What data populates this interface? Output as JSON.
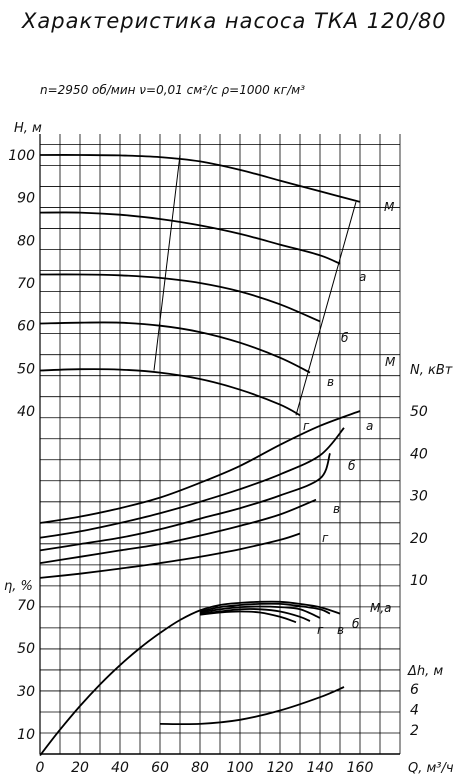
{
  "title": "Характеристика насоса ТКА 120/80",
  "params": "n=2950 об/мин   ν=0,01 см²/с   ρ=1000 кг/м³",
  "chart_data": {
    "type": "line",
    "x_label": "Q, м³/ч",
    "x_ticks": [
      0,
      20,
      40,
      60,
      80,
      100,
      120,
      140,
      160
    ],
    "xlim": [
      0,
      180
    ],
    "grid": true,
    "axes": {
      "H": {
        "label": "H, м",
        "ticks": [
          40,
          50,
          60,
          70,
          80,
          90,
          100
        ],
        "range": [
          40,
          100
        ]
      },
      "N": {
        "label": "N, кВт",
        "ticks": [
          10,
          20,
          30,
          40,
          50
        ],
        "range": [
          10,
          50
        ]
      },
      "eta": {
        "label": "η, %",
        "ticks": [
          10,
          30,
          50,
          70
        ],
        "range": [
          0,
          70
        ]
      },
      "dh": {
        "label": "Δh, м",
        "ticks": [
          2,
          4,
          6
        ],
        "range": [
          2,
          6
        ]
      }
    },
    "series": [
      {
        "axis": "H",
        "name": "М",
        "x": [
          0,
          20,
          40,
          60,
          80,
          100,
          120,
          140,
          160
        ],
        "y": [
          100,
          100,
          99.9,
          99.5,
          98.5,
          96.5,
          94,
          91.5,
          89
        ]
      },
      {
        "axis": "H",
        "name": "а",
        "x": [
          0,
          20,
          40,
          60,
          80,
          100,
          120,
          140,
          150
        ],
        "y": [
          86.5,
          86.5,
          86,
          85,
          83.5,
          81.5,
          79,
          76.5,
          74.5
        ]
      },
      {
        "axis": "H",
        "name": "б",
        "x": [
          0,
          20,
          40,
          60,
          80,
          100,
          120,
          140
        ],
        "y": [
          72,
          72,
          71.8,
          71.2,
          70,
          68,
          65,
          61
        ]
      },
      {
        "axis": "H",
        "name": "в",
        "x": [
          0,
          20,
          40,
          60,
          80,
          100,
          120,
          135
        ],
        "y": [
          60.5,
          60.7,
          60.7,
          60,
          58.5,
          56,
          52.5,
          49
        ]
      },
      {
        "axis": "H",
        "name": "г",
        "x": [
          0,
          20,
          40,
          60,
          80,
          100,
          120,
          130
        ],
        "y": [
          49.5,
          49.8,
          49.7,
          49,
          47.5,
          45,
          41.5,
          39
        ]
      },
      {
        "axis": "N",
        "name": "М",
        "x": [
          0,
          20,
          40,
          60,
          80,
          100,
          120,
          140,
          160
        ],
        "y": [
          23.5,
          25,
          27,
          29.5,
          33,
          37,
          42,
          46.5,
          50
        ]
      },
      {
        "axis": "N",
        "name": "а",
        "x": [
          0,
          20,
          40,
          60,
          80,
          100,
          120,
          140,
          152
        ],
        "y": [
          20,
          21.5,
          23.5,
          25.8,
          28.5,
          31.5,
          35,
          39.5,
          46
        ]
      },
      {
        "axis": "N",
        "name": "б",
        "x": [
          0,
          20,
          40,
          60,
          80,
          100,
          120,
          140,
          145
        ],
        "y": [
          17,
          18.5,
          20,
          22,
          24.5,
          27,
          30,
          34,
          40
        ]
      },
      {
        "axis": "N",
        "name": "в",
        "x": [
          0,
          20,
          40,
          60,
          80,
          100,
          120,
          138
        ],
        "y": [
          14,
          15.5,
          17,
          18.5,
          20.5,
          22.8,
          25.5,
          29
        ]
      },
      {
        "axis": "N",
        "name": "г",
        "x": [
          0,
          20,
          40,
          60,
          80,
          100,
          120,
          130
        ],
        "y": [
          10.5,
          11.5,
          12.7,
          14,
          15.5,
          17.3,
          19.5,
          21
        ]
      },
      {
        "axis": "eta",
        "name": "М",
        "x": [
          0,
          10,
          20,
          30,
          40,
          50,
          60,
          70,
          80,
          90,
          100,
          110,
          120,
          130,
          140,
          150
        ],
        "y": [
          0,
          12,
          23,
          33,
          42,
          50,
          57,
          63,
          67.5,
          70,
          71,
          71.5,
          71.5,
          70.5,
          69,
          66
        ]
      },
      {
        "axis": "eta",
        "name": "а",
        "x": [
          80,
          90,
          100,
          110,
          120,
          130,
          140,
          145
        ],
        "y": [
          67,
          69,
          70,
          70.5,
          70.5,
          69.5,
          68,
          66
        ]
      },
      {
        "axis": "eta",
        "name": "б",
        "x": [
          80,
          90,
          100,
          110,
          120,
          130,
          140
        ],
        "y": [
          66.5,
          68,
          69,
          69.3,
          69,
          68,
          64
        ]
      },
      {
        "axis": "eta",
        "name": "в",
        "x": [
          80,
          90,
          100,
          110,
          120,
          130,
          135
        ],
        "y": [
          66,
          67,
          68,
          68,
          67,
          64.5,
          62.5
        ]
      },
      {
        "axis": "eta",
        "name": "г",
        "x": [
          80,
          90,
          100,
          110,
          120,
          128
        ],
        "y": [
          65.5,
          66.5,
          67,
          66.5,
          64.5,
          62
        ]
      },
      {
        "axis": "dh",
        "name": "",
        "x": [
          60,
          80,
          100,
          120,
          140,
          152
        ],
        "y": [
          2.6,
          2.6,
          3,
          3.9,
          5.2,
          6.2
        ]
      }
    ],
    "boundary_lines": [
      {
        "axis": "H",
        "x": [
          57,
          70
        ],
        "y": [
          49.5,
          100
        ]
      },
      {
        "axis": "H",
        "x": [
          128,
          158
        ],
        "y": [
          39,
          89
        ]
      }
    ],
    "curve_labels": {
      "H": [
        "М",
        "а",
        "б",
        "в",
        "г"
      ],
      "N": [
        "М",
        "а",
        "б",
        "в",
        "г"
      ],
      "eta": [
        "М,а",
        "б",
        "в",
        "г"
      ]
    }
  }
}
